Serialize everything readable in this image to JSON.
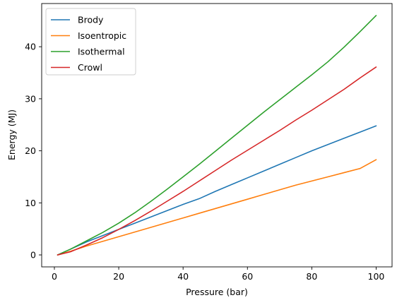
{
  "chart_data": {
    "type": "line",
    "xlabel": "Pressure (bar)",
    "ylabel": "Energy (MJ)",
    "xlim": [
      -3.95,
      104.95
    ],
    "ylim": [
      -2.3,
      48.3
    ],
    "xticks": [
      0,
      20,
      40,
      60,
      80,
      100
    ],
    "yticks": [
      0,
      10,
      20,
      30,
      40
    ],
    "grid": false,
    "legend": "upper-left",
    "x": [
      1,
      5,
      10,
      15,
      20,
      25,
      30,
      35,
      40,
      45,
      50,
      55,
      60,
      65,
      70,
      75,
      80,
      85,
      90,
      95,
      100
    ],
    "series": [
      {
        "name": "Brody",
        "color": "#1f77b4",
        "values": [
          0.0,
          1.1,
          2.5,
          3.7,
          4.9,
          6.1,
          7.3,
          8.5,
          9.7,
          10.8,
          12.2,
          13.5,
          14.8,
          16.1,
          17.4,
          18.7,
          20.0,
          21.2,
          22.4,
          23.6,
          24.8
        ]
      },
      {
        "name": "Isoentropic",
        "color": "#ff7f0e",
        "values": [
          0.0,
          0.7,
          1.7,
          2.6,
          3.5,
          4.4,
          5.3,
          6.2,
          7.1,
          8.0,
          8.9,
          9.8,
          10.7,
          11.6,
          12.5,
          13.4,
          14.2,
          15.0,
          15.8,
          16.6,
          18.3
        ]
      },
      {
        "name": "Isothermal",
        "color": "#2ca02c",
        "values": [
          0.0,
          1.1,
          2.7,
          4.3,
          6.1,
          8.1,
          10.3,
          12.6,
          15.0,
          17.4,
          19.9,
          22.4,
          24.9,
          27.4,
          29.8,
          32.2,
          34.6,
          37.1,
          39.9,
          42.9,
          46.0
        ]
      },
      {
        "name": "Crowl",
        "color": "#d62728",
        "values": [
          0.0,
          0.6,
          1.9,
          3.3,
          4.9,
          6.6,
          8.4,
          10.3,
          12.2,
          14.2,
          16.2,
          18.2,
          20.1,
          22.0,
          23.9,
          25.9,
          27.8,
          29.8,
          31.8,
          34.0,
          36.1
        ]
      }
    ]
  }
}
